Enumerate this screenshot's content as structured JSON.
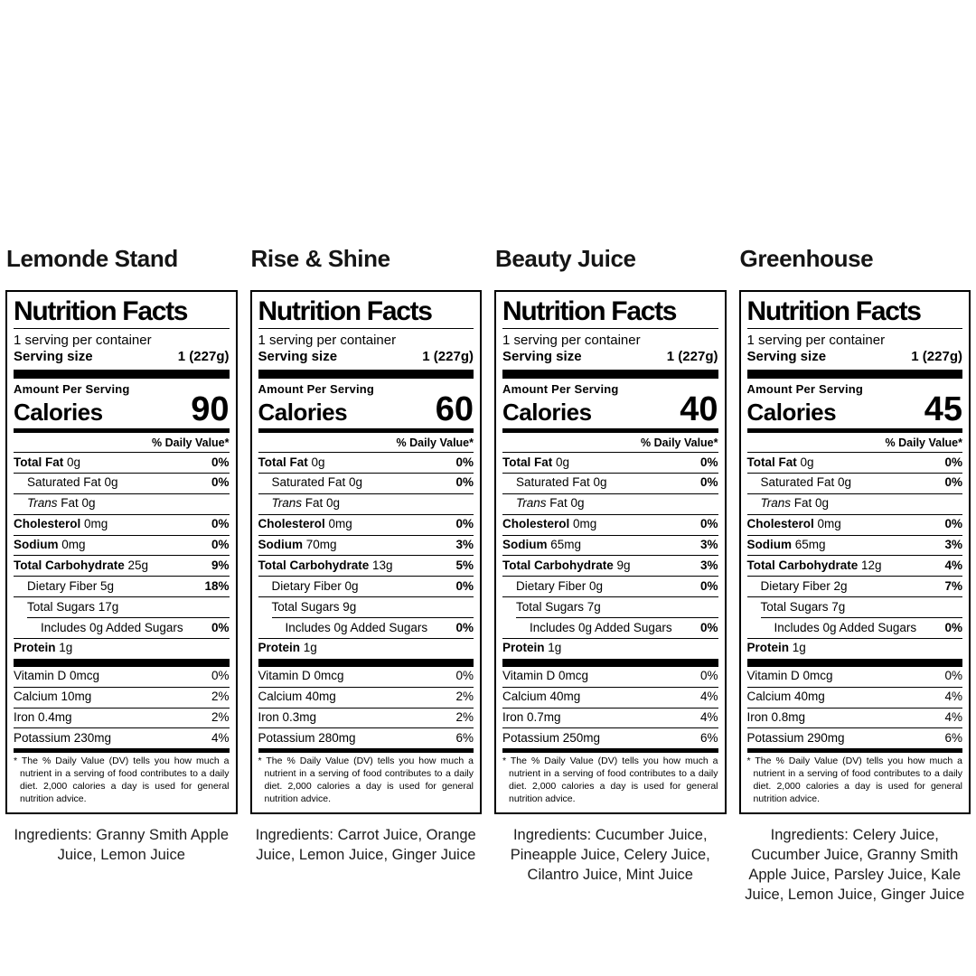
{
  "colors": {
    "background": "#ffffff",
    "ink": "#000000"
  },
  "products": [
    {
      "name": "Lemonde Stand",
      "label": {
        "title": "Nutrition Facts",
        "servings_per_container": "1 serving per container",
        "serving_size_label": "Serving size",
        "serving_size_value": "1 (227g)",
        "amount_per_serving": "Amount Per Serving",
        "calories_label": "Calories",
        "calories_value": "90",
        "daily_value_header": "% Daily Value*",
        "nutrients": [
          {
            "bold": "Total Fat",
            "rest": " 0g",
            "dv": "0%",
            "dv_bold": true,
            "indent": 0
          },
          {
            "plain": "Saturated Fat 0g",
            "dv": "0%",
            "dv_bold": true,
            "indent": 1
          },
          {
            "italic": "Trans",
            "rest": " Fat 0g",
            "dv": "",
            "indent": 1
          },
          {
            "bold": "Cholesterol",
            "rest": " 0mg",
            "dv": "0%",
            "dv_bold": true,
            "indent": 0
          },
          {
            "bold": "Sodium",
            "rest": " 0mg",
            "dv": "0%",
            "dv_bold": true,
            "indent": 0
          },
          {
            "bold": "Total Carbohydrate",
            "rest": " 25g",
            "dv": "9%",
            "dv_bold": true,
            "indent": 0
          },
          {
            "plain": "Dietary Fiber 5g",
            "dv": "18%",
            "dv_bold": true,
            "indent": 1
          },
          {
            "plain": "Total Sugars 17g",
            "dv": "",
            "indent": 1
          },
          {
            "plain": "Includes 0g Added Sugars",
            "dv": "0%",
            "dv_bold": true,
            "indent": 2
          },
          {
            "bold": "Protein",
            "rest": " 1g",
            "dv": "",
            "indent": 0
          }
        ],
        "vitamins": [
          {
            "plain": "Vitamin D 0mcg",
            "dv": "0%"
          },
          {
            "plain": "Calcium 10mg",
            "dv": "2%"
          },
          {
            "plain": "Iron 0.4mg",
            "dv": "2%"
          },
          {
            "plain": "Potassium 230mg",
            "dv": "4%"
          }
        ],
        "footnote": "* The % Daily Value (DV) tells you how much a nutrient in a serving of food contributes to a daily diet. 2,000 calories a day is used for general nutrition advice."
      },
      "ingredients": "Ingredients: Granny Smith Apple Juice, Lemon Juice"
    },
    {
      "name": "Rise & Shine",
      "label": {
        "title": "Nutrition Facts",
        "servings_per_container": "1 serving per container",
        "serving_size_label": "Serving size",
        "serving_size_value": "1 (227g)",
        "amount_per_serving": "Amount Per Serving",
        "calories_label": "Calories",
        "calories_value": "60",
        "daily_value_header": "% Daily Value*",
        "nutrients": [
          {
            "bold": "Total Fat",
            "rest": " 0g",
            "dv": "0%",
            "dv_bold": true,
            "indent": 0
          },
          {
            "plain": "Saturated Fat 0g",
            "dv": "0%",
            "dv_bold": true,
            "indent": 1
          },
          {
            "italic": "Trans",
            "rest": " Fat 0g",
            "dv": "",
            "indent": 1
          },
          {
            "bold": "Cholesterol",
            "rest": " 0mg",
            "dv": "0%",
            "dv_bold": true,
            "indent": 0
          },
          {
            "bold": "Sodium",
            "rest": " 70mg",
            "dv": "3%",
            "dv_bold": true,
            "indent": 0
          },
          {
            "bold": "Total Carbohydrate",
            "rest": " 13g",
            "dv": "5%",
            "dv_bold": true,
            "indent": 0
          },
          {
            "plain": "Dietary Fiber 0g",
            "dv": "0%",
            "dv_bold": true,
            "indent": 1
          },
          {
            "plain": "Total Sugars 9g",
            "dv": "",
            "indent": 1
          },
          {
            "plain": "Includes 0g Added Sugars",
            "dv": "0%",
            "dv_bold": true,
            "indent": 2
          },
          {
            "bold": "Protein",
            "rest": " 1g",
            "dv": "",
            "indent": 0
          }
        ],
        "vitamins": [
          {
            "plain": "Vitamin D 0mcg",
            "dv": "0%"
          },
          {
            "plain": "Calcium 40mg",
            "dv": "2%"
          },
          {
            "plain": "Iron 0.3mg",
            "dv": "2%"
          },
          {
            "plain": "Potassium 280mg",
            "dv": "6%"
          }
        ],
        "footnote": "* The % Daily Value (DV) tells you how much a nutrient in a serving of food contributes to a daily diet. 2,000 calories a day is used for general nutrition advice."
      },
      "ingredients": "Ingredients: Carrot Juice, Orange Juice, Lemon Juice, Ginger Juice"
    },
    {
      "name": "Beauty Juice",
      "label": {
        "title": "Nutrition Facts",
        "servings_per_container": "1 serving per container",
        "serving_size_label": "Serving size",
        "serving_size_value": "1 (227g)",
        "amount_per_serving": "Amount Per Serving",
        "calories_label": "Calories",
        "calories_value": "40",
        "daily_value_header": "% Daily Value*",
        "nutrients": [
          {
            "bold": "Total Fat",
            "rest": " 0g",
            "dv": "0%",
            "dv_bold": true,
            "indent": 0
          },
          {
            "plain": "Saturated Fat 0g",
            "dv": "0%",
            "dv_bold": true,
            "indent": 1
          },
          {
            "italic": "Trans",
            "rest": " Fat 0g",
            "dv": "",
            "indent": 1
          },
          {
            "bold": "Cholesterol",
            "rest": " 0mg",
            "dv": "0%",
            "dv_bold": true,
            "indent": 0
          },
          {
            "bold": "Sodium",
            "rest": " 65mg",
            "dv": "3%",
            "dv_bold": true,
            "indent": 0
          },
          {
            "bold": "Total Carbohydrate",
            "rest": " 9g",
            "dv": "3%",
            "dv_bold": true,
            "indent": 0
          },
          {
            "plain": "Dietary Fiber 0g",
            "dv": "0%",
            "dv_bold": true,
            "indent": 1
          },
          {
            "plain": "Total Sugars 7g",
            "dv": "",
            "indent": 1
          },
          {
            "plain": "Includes 0g Added Sugars",
            "dv": "0%",
            "dv_bold": true,
            "indent": 2
          },
          {
            "bold": "Protein",
            "rest": " 1g",
            "dv": "",
            "indent": 0
          }
        ],
        "vitamins": [
          {
            "plain": "Vitamin D 0mcg",
            "dv": "0%"
          },
          {
            "plain": "Calcium 40mg",
            "dv": "4%"
          },
          {
            "plain": "Iron 0.7mg",
            "dv": "4%"
          },
          {
            "plain": "Potassium 250mg",
            "dv": "6%"
          }
        ],
        "footnote": "* The % Daily Value (DV) tells you how much a nutrient in a serving of food contributes to a daily diet. 2,000 calories a day is used for general nutrition advice."
      },
      "ingredients": "Ingredients: Cucumber Juice, Pineapple Juice, Celery Juice, Cilantro Juice, Mint Juice"
    },
    {
      "name": "Greenhouse",
      "label": {
        "title": "Nutrition Facts",
        "servings_per_container": "1 serving per container",
        "serving_size_label": "Serving size",
        "serving_size_value": "1 (227g)",
        "amount_per_serving": "Amount Per Serving",
        "calories_label": "Calories",
        "calories_value": "45",
        "daily_value_header": "% Daily Value*",
        "nutrients": [
          {
            "bold": "Total Fat",
            "rest": " 0g",
            "dv": "0%",
            "dv_bold": true,
            "indent": 0
          },
          {
            "plain": "Saturated Fat 0g",
            "dv": "0%",
            "dv_bold": true,
            "indent": 1
          },
          {
            "italic": "Trans",
            "rest": " Fat 0g",
            "dv": "",
            "indent": 1
          },
          {
            "bold": "Cholesterol",
            "rest": " 0mg",
            "dv": "0%",
            "dv_bold": true,
            "indent": 0
          },
          {
            "bold": "Sodium",
            "rest": " 65mg",
            "dv": "3%",
            "dv_bold": true,
            "indent": 0
          },
          {
            "bold": "Total Carbohydrate",
            "rest": " 12g",
            "dv": "4%",
            "dv_bold": true,
            "indent": 0
          },
          {
            "plain": "Dietary Fiber 2g",
            "dv": "7%",
            "dv_bold": true,
            "indent": 1
          },
          {
            "plain": "Total Sugars 7g",
            "dv": "",
            "indent": 1
          },
          {
            "plain": "Includes 0g Added Sugars",
            "dv": "0%",
            "dv_bold": true,
            "indent": 2
          },
          {
            "bold": "Protein",
            "rest": " 1g",
            "dv": "",
            "indent": 0
          }
        ],
        "vitamins": [
          {
            "plain": "Vitamin D 0mcg",
            "dv": "0%"
          },
          {
            "plain": "Calcium 40mg",
            "dv": "4%"
          },
          {
            "plain": "Iron 0.8mg",
            "dv": "4%"
          },
          {
            "plain": "Potassium 290mg",
            "dv": "6%"
          }
        ],
        "footnote": "* The % Daily Value (DV) tells you how much a nutrient in a serving of food contributes to a daily diet. 2,000 calories a day is used for general nutrition advice."
      },
      "ingredients": "Ingredients: Celery Juice, Cucumber Juice, Granny Smith Apple Juice, Parsley Juice, Kale Juice, Lemon Juice, Ginger Juice"
    }
  ]
}
